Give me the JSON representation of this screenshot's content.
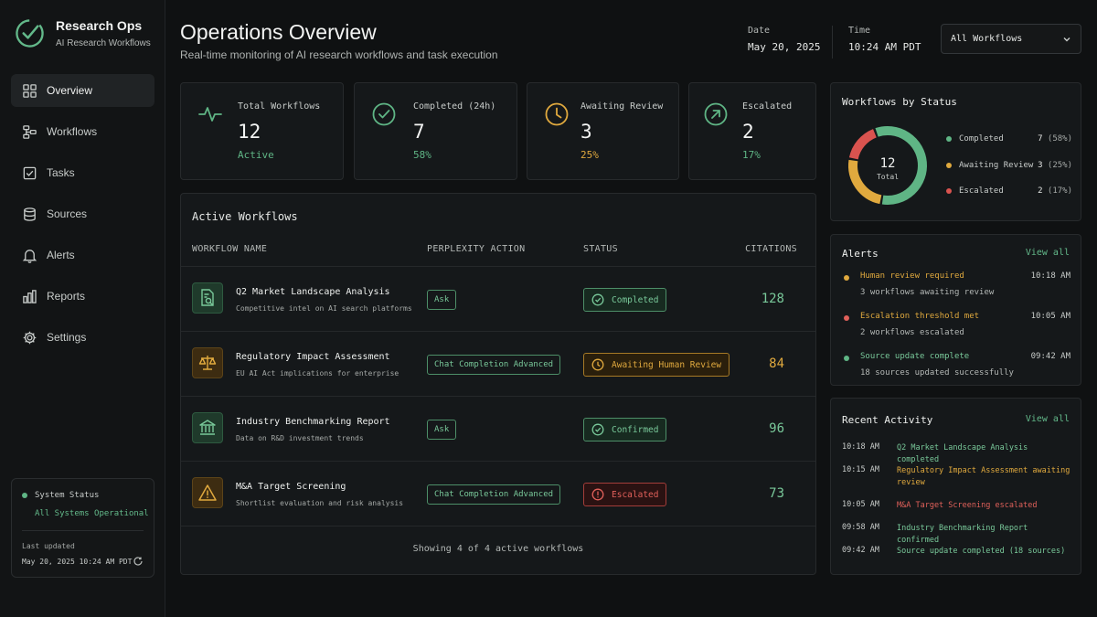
{
  "brand": {
    "title": "Research Ops",
    "subtitle": "AI Research Workflows"
  },
  "nav": {
    "items": [
      {
        "label": "Overview",
        "icon": "grid-icon"
      },
      {
        "label": "Workflows",
        "icon": "workflow-icon"
      },
      {
        "label": "Tasks",
        "icon": "checkbox-icon"
      },
      {
        "label": "Sources",
        "icon": "database-icon"
      },
      {
        "label": "Alerts",
        "icon": "bell-icon"
      },
      {
        "label": "Reports",
        "icon": "bar-chart-icon"
      },
      {
        "label": "Settings",
        "icon": "gear-icon"
      }
    ],
    "active": "Overview"
  },
  "system": {
    "label": "System Status",
    "status": "All Systems Operational",
    "last_updated_label": "Last updated",
    "last_updated": "May 20, 2025 10:24 AM PDT"
  },
  "header": {
    "title": "Operations Overview",
    "subtitle": "Real-time monitoring of AI research workflows and task execution",
    "date_label": "Date",
    "date": "May 20, 2025",
    "time_label": "Time",
    "time": "10:24 AM PDT",
    "filter": "All Workflows"
  },
  "stats": [
    {
      "label": "Total Workflows",
      "value": "12",
      "sub": "Active",
      "icon": "pulse-icon"
    },
    {
      "label": "Completed (24h)",
      "value": "7",
      "sub": "58%",
      "icon": "check-circle-icon"
    },
    {
      "label": "Awaiting Review",
      "value": "3",
      "sub": "25%",
      "icon": "clock-icon"
    },
    {
      "label": "Escalated",
      "value": "2",
      "sub": "17%",
      "icon": "arrow-up-right-icon"
    }
  ],
  "workflows": {
    "title": "Active Workflows",
    "columns": [
      "WORKFLOW NAME",
      "PERPLEXITY ACTION",
      "STATUS",
      "CITATIONS"
    ],
    "rows": [
      {
        "name": "Q2 Market Landscape Analysis",
        "desc": "Competitive intel on AI search platforms",
        "action": "Ask",
        "status": "Completed",
        "citations": "128",
        "icon": "document-search-icon"
      },
      {
        "name": "Regulatory Impact Assessment",
        "desc": "EU AI Act implications for enterprise",
        "action": "Chat Completion Advanced",
        "status": "Awaiting Human Review",
        "citations": "84",
        "icon": "scales-icon"
      },
      {
        "name": "Industry Benchmarking Report",
        "desc": "Data on R&D investment trends",
        "action": "Ask",
        "status": "Confirmed",
        "citations": "96",
        "icon": "institution-icon"
      },
      {
        "name": "M&A Target Screening",
        "desc": "Shortlist evaluation and risk analysis",
        "action": "Chat Completion Advanced",
        "status": "Escalated",
        "citations": "73",
        "icon": "warning-icon"
      }
    ],
    "footer": "Showing 4 of 4 active workflows"
  },
  "by_status": {
    "title": "Workflows by Status",
    "total": "12",
    "total_label": "Total",
    "items": [
      {
        "label": "Completed",
        "count": "7",
        "pct": "(58%)",
        "value": 7,
        "color": "#5fb585"
      },
      {
        "label": "Awaiting Review",
        "count": "3",
        "pct": "(25%)",
        "value": 3,
        "color": "#e0a93e"
      },
      {
        "label": "Escalated",
        "count": "2",
        "pct": "(17%)",
        "value": 2,
        "color": "#d9534f"
      }
    ]
  },
  "alerts": {
    "title": "Alerts",
    "view_all": "View all",
    "items": [
      {
        "title": "Human review required",
        "desc": "3 workflows awaiting review",
        "time": "10:18 AM",
        "color": "#e0a93e"
      },
      {
        "title": "Escalation threshold met",
        "desc": "2 workflows escalated",
        "time": "10:05 AM",
        "color": "#e0605a"
      },
      {
        "title": "Source update complete",
        "desc": "18 sources updated successfully",
        "time": "09:42 AM",
        "color": "#5fb585"
      }
    ]
  },
  "activity": {
    "title": "Recent Activity",
    "view_all": "View all",
    "items": [
      {
        "time": "10:18 AM",
        "text": "Q2 Market Landscape Analysis completed",
        "color": "#79c99a"
      },
      {
        "time": "10:15 AM",
        "text": "Regulatory Impact Assessment awaiting review",
        "color": "#e0a93e"
      },
      {
        "time": "10:05 AM",
        "text": "M&A Target Screening escalated",
        "color": "#e0605a"
      },
      {
        "time": "09:58 AM",
        "text": "Industry Benchmarking Report confirmed",
        "color": "#79c99a"
      },
      {
        "time": "09:42 AM",
        "text": "Source update completed (18 sources)",
        "color": "#79c99a"
      }
    ]
  },
  "colors": {
    "green": "#5fb585",
    "amber": "#e0a93e",
    "red": "#d9534f",
    "background": "#0f1112",
    "card": "#15181a"
  }
}
